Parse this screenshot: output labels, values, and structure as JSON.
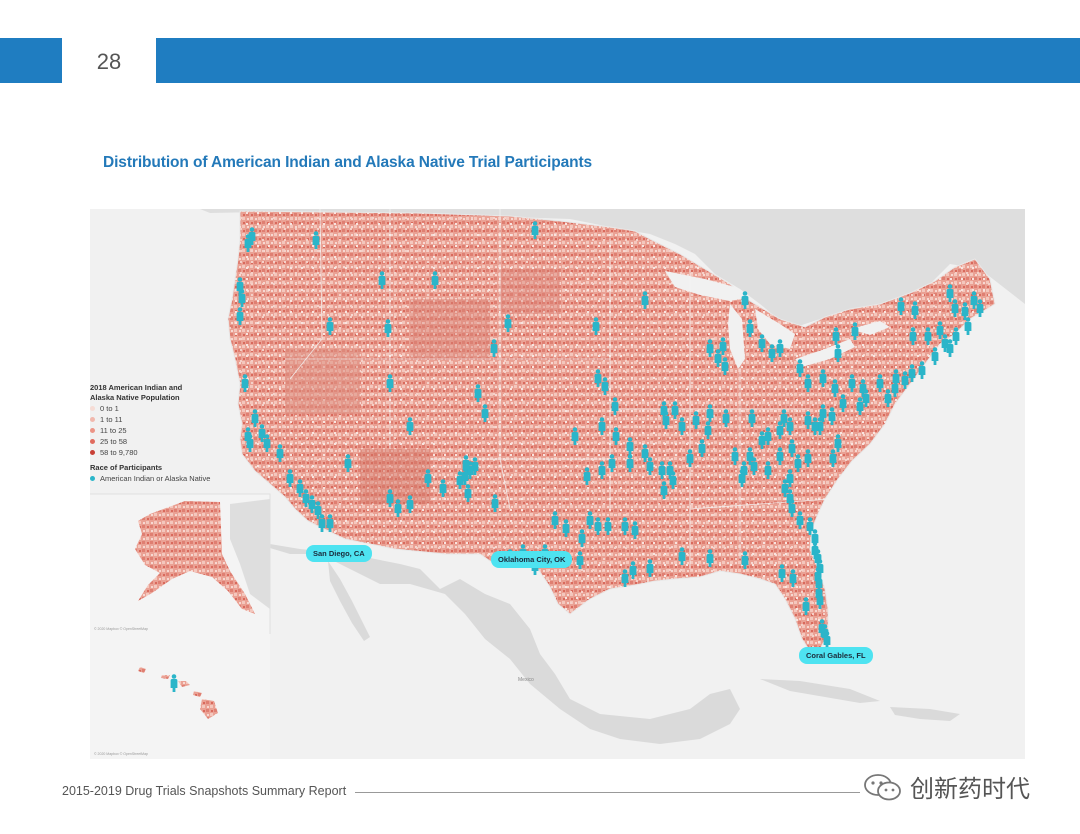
{
  "header": {
    "page_number": "28"
  },
  "title": "Distribution of American Indian and Alaska Native Trial Participants",
  "legend": {
    "population_title_line1": "2018 American Indian and",
    "population_title_line2": "Alaska Native Population",
    "population_bins": [
      {
        "label": "0 to 1",
        "color": "#f6dcd5"
      },
      {
        "label": "1 to 11",
        "color": "#f1b8ad"
      },
      {
        "label": "11 to 25",
        "color": "#ec9486"
      },
      {
        "label": "25 to 58",
        "color": "#e06b5e"
      },
      {
        "label": "58 to 9,780",
        "color": "#c84036"
      }
    ],
    "race_title": "Race of Participants",
    "race_item": {
      "label": "American Indian or Alaska Native",
      "color": "#2bb5c9"
    }
  },
  "callouts": {
    "san_diego": "San Diego, CA",
    "oklahoma_city": "Oklahoma City, OK",
    "coral_gables": "Coral Gables, FL"
  },
  "map_colors": {
    "land_shade": "#eaa194",
    "neighbor_land": "#dcdcdc",
    "water": "#f1f1f1",
    "marker": "#2bb5c9"
  },
  "footer": {
    "report_name": "2015-2019 Drug Trials Snapshots Summary Report",
    "watermark": "创新药时代"
  }
}
